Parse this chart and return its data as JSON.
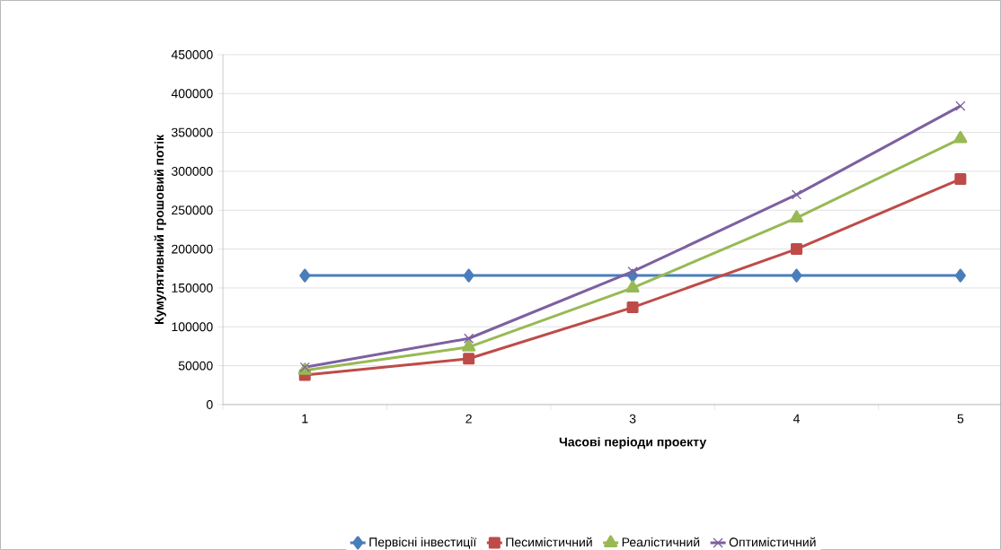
{
  "chart_data": {
    "type": "line",
    "xlabel": "Часові періоди проекту",
    "ylabel": "Кумулятивний грошовий потік",
    "categories": [
      "1",
      "2",
      "3",
      "4",
      "5"
    ],
    "series": [
      {
        "name": "Первісні інвестиції",
        "color": "#4a7ebb",
        "marker": "diamond",
        "values": [
          166000,
          166000,
          166000,
          166000,
          166000
        ]
      },
      {
        "name": "Песимістичний",
        "color": "#be4b48",
        "marker": "square",
        "values": [
          38000,
          59000,
          125000,
          200000,
          290000
        ]
      },
      {
        "name": "Реалістичний",
        "color": "#98b954",
        "marker": "triangle",
        "values": [
          44000,
          74000,
          150000,
          240000,
          342000
        ]
      },
      {
        "name": "Оптимістичний",
        "color": "#7d60a0",
        "marker": "cross",
        "values": [
          48000,
          85000,
          171000,
          270000,
          384000
        ]
      }
    ],
    "ylim": [
      0,
      450000
    ],
    "yticks": [
      0,
      50000,
      100000,
      150000,
      200000,
      250000,
      300000,
      350000,
      400000,
      450000
    ],
    "grid": "y",
    "legend": "bottom",
    "line_style": "solid"
  }
}
